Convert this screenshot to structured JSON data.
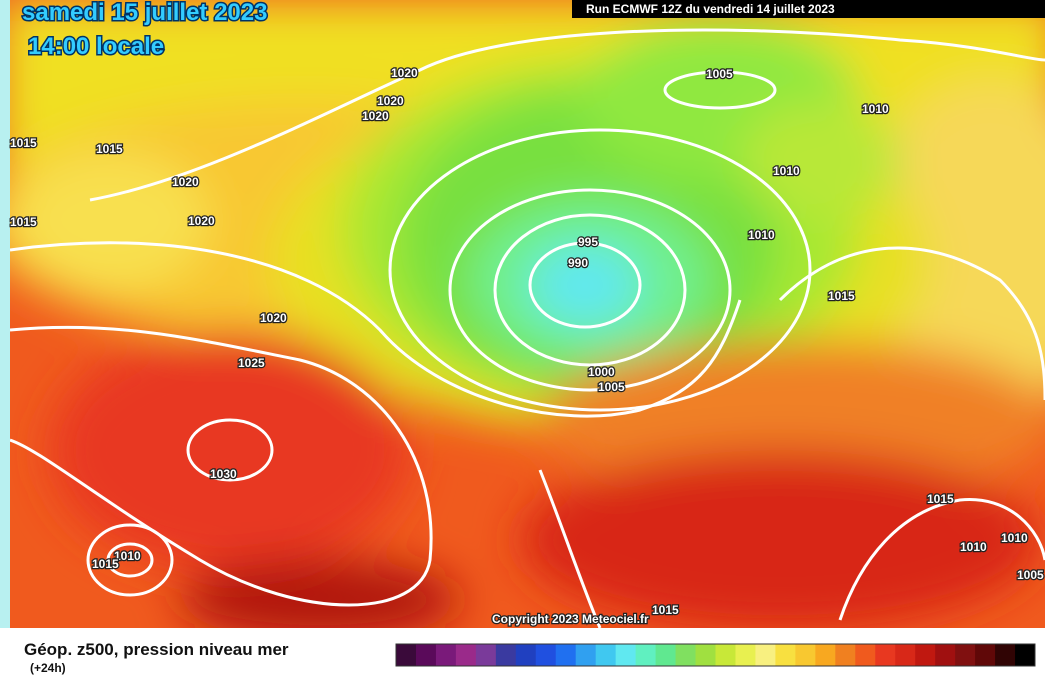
{
  "header": {
    "date": "samedi 15 juillet 2023",
    "time": "14:00 locale",
    "run": "Run ECMWF 12Z du vendredi 14 juillet 2023"
  },
  "map": {
    "isobar_labels": [
      "1015",
      "1015",
      "1020",
      "1020",
      "1015",
      "1020",
      "1020",
      "1020",
      "1005",
      "1010",
      "1010",
      "995",
      "990",
      "1010",
      "1015",
      "1020",
      "1025",
      "1000",
      "1005",
      "1030",
      "1010",
      "1015",
      "1015",
      "1010",
      "1010",
      "1005",
      "1015"
    ],
    "copyright": "Copyright 2023 Meteociel.fr"
  },
  "footer": {
    "title": "Géop. z500, pression niveau mer",
    "subtitle": "(+24h)"
  }
}
